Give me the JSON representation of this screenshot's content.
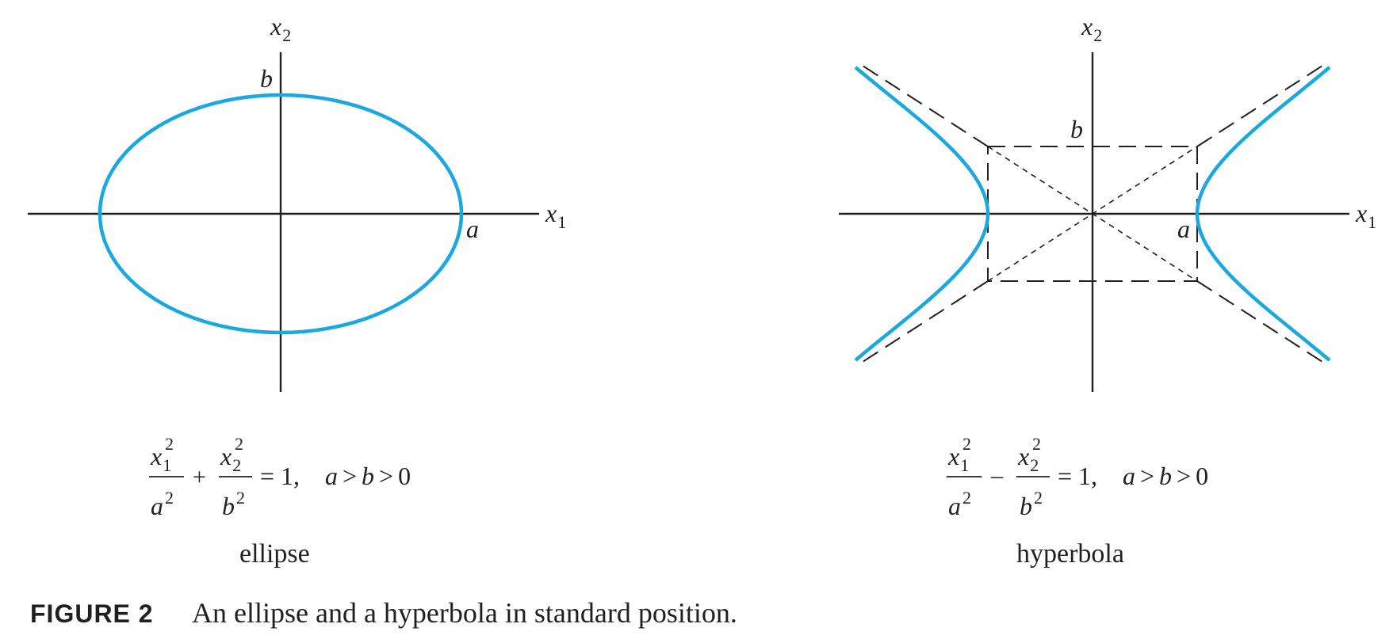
{
  "ellipse": {
    "name": "ellipse",
    "axis_x": "x",
    "axis_x_sub": "1",
    "axis_y": "x",
    "axis_y_sub": "2",
    "label_a": "a",
    "label_b": "b",
    "equation": {
      "num1_var": "x",
      "num1_sub": "1",
      "num1_sup": "2",
      "den1_var": "a",
      "den1_sup": "2",
      "op": "+",
      "num2_var": "x",
      "num2_sub": "2",
      "num2_sup": "2",
      "den2_var": "b",
      "den2_sup": "2",
      "equals": "= 1,",
      "cond_a": "a",
      "gt1": ">",
      "cond_b": "b",
      "gt2": ">",
      "zero": "0"
    }
  },
  "hyperbola": {
    "name": "hyperbola",
    "axis_x": "x",
    "axis_x_sub": "1",
    "axis_y": "x",
    "axis_y_sub": "2",
    "label_a": "a",
    "label_b": "b",
    "equation": {
      "num1_var": "x",
      "num1_sub": "1",
      "num1_sup": "2",
      "den1_var": "a",
      "den1_sup": "2",
      "op": "–",
      "num2_var": "x",
      "num2_sub": "2",
      "num2_sup": "2",
      "den2_var": "b",
      "den2_sup": "2",
      "equals": "= 1,",
      "cond_a": "a",
      "gt1": ">",
      "cond_b": "b",
      "gt2": ">",
      "zero": "0"
    }
  },
  "caption": {
    "label": "FIGURE 2",
    "text": "An ellipse and a hyperbola in standard position."
  },
  "colors": {
    "curve": "#1ba8df",
    "ink": "#231f20"
  }
}
